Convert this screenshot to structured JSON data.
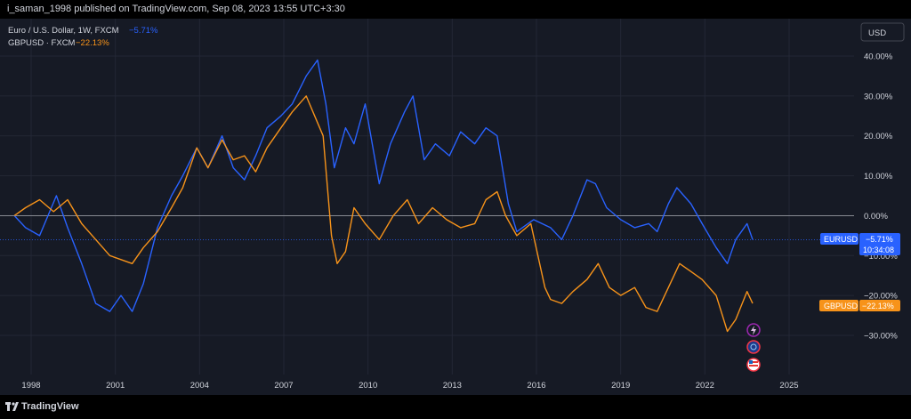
{
  "header": {
    "publisher": "i_saman_1998 published on TradingView.com, Sep 08, 2023 13:55 UTC+3:30"
  },
  "legend": [
    {
      "label": "Euro / U.S. Dollar, 1W, FXCM",
      "change": "−5.71%",
      "color": "#2962ff"
    },
    {
      "label": "GBPUSD · FXCM",
      "change": "−22.13%",
      "color": "#f7931a"
    }
  ],
  "currency_button": "USD",
  "price_tags": {
    "eurusd": {
      "symbol": "EURUSD",
      "value": "−5.71%",
      "countdown": "10:34:08",
      "color": "#2962ff"
    },
    "gbpusd": {
      "symbol": "GBPUSD",
      "value": "−22.13%",
      "color": "#f7931a"
    }
  },
  "footer": {
    "brand": "TradingView"
  },
  "event_icons": [
    "lightning-icon",
    "globe-icon",
    "us-flag-icon"
  ],
  "chart_data": {
    "type": "line",
    "y_unit": "%",
    "ylim": [
      -35,
      44
    ],
    "xlim": [
      1997.4,
      2027.0
    ],
    "y_ticks": [
      40,
      30,
      20,
      10,
      0,
      -10,
      -20,
      -30
    ],
    "y_tick_labels": [
      "40.00%",
      "30.00%",
      "20.00%",
      "10.00%",
      "0.00%",
      "−10.00%",
      "−20.00%",
      "−30.00%"
    ],
    "x_ticks": [
      1998,
      2001,
      2004,
      2007,
      2010,
      2013,
      2016,
      2019,
      2022,
      2025
    ],
    "x_tick_labels": [
      "1998",
      "2001",
      "2004",
      "2007",
      "2010",
      "2013",
      "2016",
      "2019",
      "2022",
      "2025"
    ],
    "series": [
      {
        "name": "EURUSD",
        "color": "#2962ff",
        "x": [
          1997.4,
          1997.8,
          1998.3,
          1998.9,
          1999.3,
          1999.8,
          2000.3,
          2000.8,
          2001.2,
          2001.6,
          2002.0,
          2002.5,
          2003.0,
          2003.4,
          2003.9,
          2004.3,
          2004.8,
          2005.2,
          2005.6,
          2006.0,
          2006.4,
          2006.9,
          2007.3,
          2007.8,
          2008.2,
          2008.5,
          2008.8,
          2009.2,
          2009.5,
          2009.9,
          2010.4,
          2010.8,
          2011.3,
          2011.6,
          2012.0,
          2012.4,
          2012.9,
          2013.3,
          2013.8,
          2014.2,
          2014.6,
          2015.0,
          2015.3,
          2015.9,
          2016.5,
          2016.9,
          2017.3,
          2017.8,
          2018.1,
          2018.5,
          2019.0,
          2019.5,
          2020.0,
          2020.3,
          2020.7,
          2021.0,
          2021.5,
          2021.9,
          2022.4,
          2022.8,
          2023.1,
          2023.5,
          2023.7
        ],
        "y": [
          0,
          -3,
          -5,
          5,
          -3,
          -12,
          -22,
          -24,
          -20,
          -24,
          -17,
          -3,
          5,
          10,
          17,
          12,
          20,
          12,
          9,
          15,
          22,
          25,
          28,
          35,
          39,
          28,
          12,
          22,
          18,
          28,
          8,
          18,
          26,
          30,
          14,
          18,
          15,
          21,
          18,
          22,
          20,
          3,
          -4,
          -1,
          -3,
          -6,
          0,
          9,
          8,
          2,
          -1,
          -3,
          -2,
          -4,
          3,
          7,
          3,
          -2,
          -8,
          -12,
          -6,
          -2,
          -6
        ]
      },
      {
        "name": "GBPUSD",
        "color": "#f7931a",
        "x": [
          1997.4,
          1997.8,
          1998.3,
          1998.8,
          1999.3,
          1999.8,
          2000.3,
          2000.8,
          2001.2,
          2001.6,
          2002.0,
          2002.5,
          2003.0,
          2003.4,
          2003.9,
          2004.3,
          2004.8,
          2005.2,
          2005.6,
          2006.0,
          2006.4,
          2006.9,
          2007.3,
          2007.8,
          2008.1,
          2008.4,
          2008.7,
          2008.9,
          2009.2,
          2009.5,
          2009.9,
          2010.4,
          2010.9,
          2011.4,
          2011.8,
          2012.3,
          2012.8,
          2013.3,
          2013.8,
          2014.2,
          2014.6,
          2014.9,
          2015.3,
          2015.8,
          2016.3,
          2016.5,
          2016.9,
          2017.3,
          2017.8,
          2018.2,
          2018.6,
          2019.0,
          2019.5,
          2019.9,
          2020.3,
          2020.7,
          2021.1,
          2021.5,
          2021.9,
          2022.4,
          2022.8,
          2023.1,
          2023.5,
          2023.7
        ],
        "y": [
          0,
          2,
          4,
          1,
          4,
          -2,
          -6,
          -10,
          -11,
          -12,
          -8,
          -4,
          2,
          7,
          17,
          12,
          19,
          14,
          15,
          11,
          17,
          22,
          26,
          30,
          25,
          20,
          -5,
          -12,
          -9,
          2,
          -2,
          -6,
          0,
          4,
          -2,
          2,
          -1,
          -3,
          -2,
          4,
          6,
          0,
          -5,
          -2,
          -18,
          -21,
          -22,
          -19,
          -16,
          -12,
          -18,
          -20,
          -18,
          -23,
          -24,
          -18,
          -12,
          -14,
          -16,
          -20,
          -29,
          -26,
          -19,
          -22
        ]
      }
    ]
  }
}
